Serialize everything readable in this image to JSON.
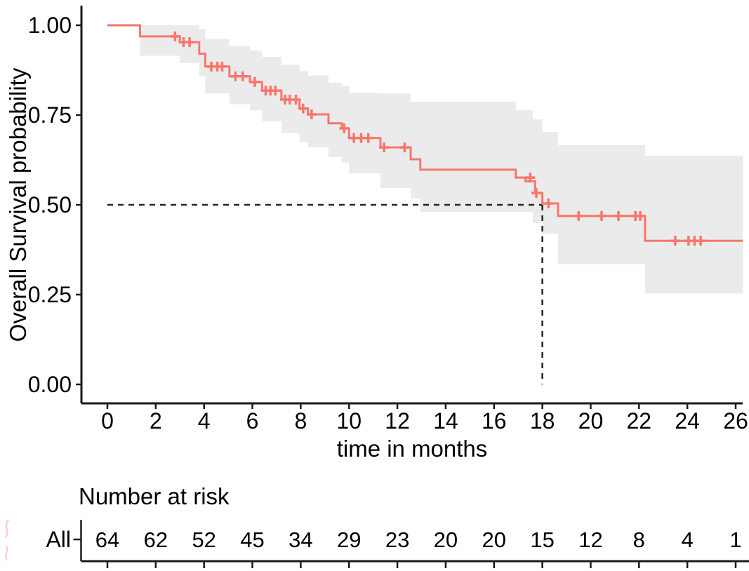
{
  "chart_data": {
    "type": "line",
    "subtype": "kaplan-meier-survival",
    "title": "",
    "xlabel": "time in months",
    "ylabel": "Overall Survival probability",
    "xlim": [
      0,
      26
    ],
    "ylim": [
      0,
      1
    ],
    "grid": false,
    "legend_position": "none",
    "x_ticks": [
      0,
      2,
      4,
      6,
      8,
      10,
      12,
      14,
      16,
      18,
      20,
      22,
      24,
      26
    ],
    "y_ticks": [
      {
        "value": 1.0,
        "label": "1.00"
      },
      {
        "value": 0.75,
        "label": "0.75"
      },
      {
        "value": 0.5,
        "label": "0.50"
      },
      {
        "value": 0.25,
        "label": "0.25"
      },
      {
        "value": 0.0,
        "label": "0.00"
      }
    ],
    "style": {
      "curve_color": "#F8766D",
      "ci_band_color": "#EBEBEB",
      "median_dash_color": "#262626",
      "axis_color": "#1a1a1a",
      "text_color": "#000000"
    },
    "median_survival": {
      "time": 18,
      "probability": 0.5
    },
    "series": [
      {
        "name": "All",
        "color": "#F8766D",
        "end_time": 26.3,
        "steps": [
          [
            0,
            1.0
          ],
          [
            1.35,
            0.969
          ],
          [
            3.0,
            0.953
          ],
          [
            3.8,
            0.921
          ],
          [
            4.05,
            0.885
          ],
          [
            5.05,
            0.858
          ],
          [
            5.9,
            0.842
          ],
          [
            6.4,
            0.818
          ],
          [
            7.2,
            0.793
          ],
          [
            7.95,
            0.768
          ],
          [
            8.3,
            0.752
          ],
          [
            9.15,
            0.727
          ],
          [
            9.7,
            0.713
          ],
          [
            10.0,
            0.686
          ],
          [
            11.3,
            0.66
          ],
          [
            12.55,
            0.627
          ],
          [
            12.95,
            0.598
          ],
          [
            16.9,
            0.576
          ],
          [
            17.3,
            0.566
          ],
          [
            17.7,
            0.533
          ],
          [
            18.0,
            0.504
          ],
          [
            18.65,
            0.469
          ],
          [
            22.25,
            0.4
          ]
        ],
        "censors": [
          [
            2.8,
            0.969
          ],
          [
            3.15,
            0.953
          ],
          [
            3.4,
            0.953
          ],
          [
            4.3,
            0.885
          ],
          [
            4.55,
            0.885
          ],
          [
            4.75,
            0.885
          ],
          [
            5.3,
            0.858
          ],
          [
            5.6,
            0.858
          ],
          [
            6.1,
            0.842
          ],
          [
            6.55,
            0.818
          ],
          [
            6.75,
            0.818
          ],
          [
            6.95,
            0.818
          ],
          [
            7.35,
            0.793
          ],
          [
            7.55,
            0.793
          ],
          [
            7.8,
            0.793
          ],
          [
            8.1,
            0.768
          ],
          [
            8.45,
            0.752
          ],
          [
            9.8,
            0.713
          ],
          [
            10.2,
            0.686
          ],
          [
            10.5,
            0.686
          ],
          [
            10.8,
            0.686
          ],
          [
            11.45,
            0.66
          ],
          [
            12.3,
            0.66
          ],
          [
            17.5,
            0.576
          ],
          [
            17.75,
            0.533
          ],
          [
            18.25,
            0.504
          ],
          [
            19.5,
            0.469
          ],
          [
            20.45,
            0.469
          ],
          [
            21.15,
            0.469
          ],
          [
            21.85,
            0.469
          ],
          [
            22.05,
            0.469
          ],
          [
            23.5,
            0.4
          ],
          [
            24.05,
            0.4
          ],
          [
            24.3,
            0.4
          ],
          [
            24.55,
            0.4
          ]
        ],
        "ci_steps": [
          [
            1.35,
            1.0,
            0.915
          ],
          [
            3.0,
            1.0,
            0.895
          ],
          [
            3.8,
            0.99,
            0.858
          ],
          [
            4.05,
            0.962,
            0.81
          ],
          [
            5.05,
            0.942,
            0.78
          ],
          [
            5.9,
            0.93,
            0.763
          ],
          [
            6.4,
            0.912,
            0.733
          ],
          [
            7.2,
            0.89,
            0.7
          ],
          [
            7.95,
            0.872,
            0.675
          ],
          [
            8.3,
            0.86,
            0.66
          ],
          [
            9.15,
            0.84,
            0.633
          ],
          [
            9.7,
            0.83,
            0.618
          ],
          [
            10.0,
            0.812,
            0.588
          ],
          [
            11.3,
            0.81,
            0.547
          ],
          [
            12.55,
            0.787,
            0.517
          ],
          [
            12.95,
            0.787,
            0.48
          ],
          [
            16.9,
            0.764,
            0.48
          ],
          [
            17.6,
            0.738,
            0.45
          ],
          [
            18.0,
            0.703,
            0.42
          ],
          [
            18.65,
            0.666,
            0.335
          ],
          [
            22.25,
            0.637,
            0.253
          ]
        ]
      }
    ],
    "risk_table": {
      "title": "Number at risk",
      "times": [
        0,
        2,
        4,
        6,
        8,
        10,
        12,
        14,
        16,
        18,
        20,
        22,
        24,
        26
      ],
      "rows": [
        {
          "label": "All",
          "color": "#F8766D",
          "values": [
            64,
            62,
            52,
            45,
            34,
            29,
            23,
            20,
            20,
            15,
            12,
            8,
            4,
            1
          ]
        }
      ]
    }
  }
}
